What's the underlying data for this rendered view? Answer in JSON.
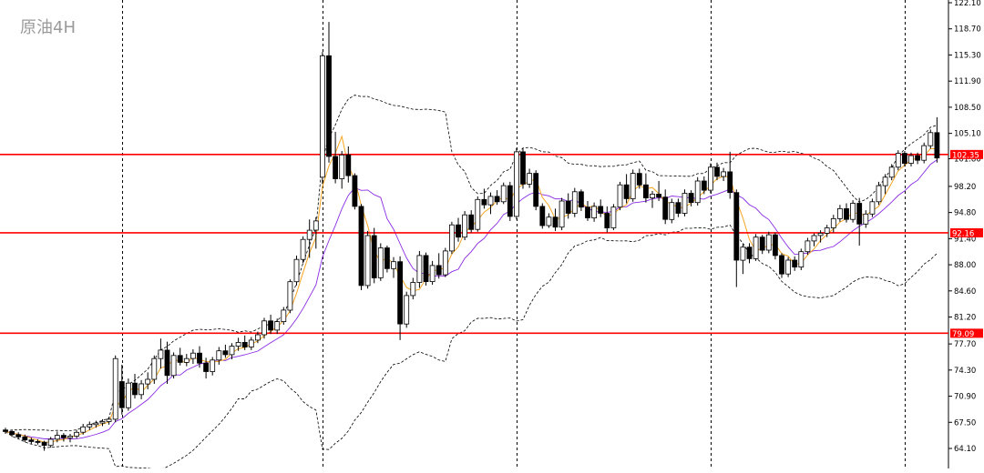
{
  "chart_data": {
    "type": "candlestick",
    "title": "原油4H",
    "ylim": [
      62.5,
      122.1
    ],
    "y_ticks": [
      "122.10",
      "118.70",
      "115.30",
      "111.90",
      "108.50",
      "105.10",
      "101.80",
      "98.20",
      "94.80",
      "91.40",
      "88.00",
      "84.60",
      "81.20",
      "77.70",
      "74.30",
      "70.90",
      "67.50",
      "64.10"
    ],
    "horizontal_lines": [
      {
        "value": 102.35,
        "label": "102.35",
        "color": "#ff0000"
      },
      {
        "value": 92.16,
        "label": "92.16",
        "color": "#ff0000"
      },
      {
        "value": 79.09,
        "label": "79.09",
        "color": "#ff0000"
      }
    ],
    "vertical_separators_x_index": [
      18,
      49,
      79,
      109,
      139
    ],
    "grid": false,
    "colors": {
      "up": "#ffffff",
      "down": "#000000",
      "wick": "#000000",
      "ma_fast": "#f5a623",
      "ma_slow": "#8a2be2",
      "band": "#000000"
    },
    "candles": [
      [
        66.5,
        66.8,
        66.0,
        66.3
      ],
      [
        66.3,
        66.5,
        65.6,
        65.9
      ],
      [
        65.9,
        66.2,
        65.3,
        65.6
      ],
      [
        65.6,
        65.9,
        64.9,
        65.2
      ],
      [
        65.2,
        65.5,
        64.7,
        65.0
      ],
      [
        65.0,
        65.3,
        64.6,
        64.9
      ],
      [
        64.9,
        65.1,
        63.8,
        64.5
      ],
      [
        64.5,
        65.6,
        64.2,
        65.3
      ],
      [
        65.3,
        66.3,
        64.9,
        65.8
      ],
      [
        65.8,
        66.1,
        65.0,
        65.5
      ],
      [
        65.5,
        66.0,
        64.9,
        65.7
      ],
      [
        65.7,
        66.5,
        65.4,
        66.2
      ],
      [
        66.2,
        67.3,
        65.9,
        66.9
      ],
      [
        66.9,
        67.6,
        66.5,
        67.2
      ],
      [
        67.2,
        67.7,
        66.8,
        67.4
      ],
      [
        67.4,
        67.9,
        67.0,
        67.6
      ],
      [
        67.6,
        68.2,
        67.2,
        67.9
      ],
      [
        67.9,
        76.2,
        67.5,
        75.8
      ],
      [
        72.8,
        75.0,
        68.5,
        69.4
      ],
      [
        69.4,
        73.2,
        69.0,
        72.6
      ],
      [
        72.6,
        73.8,
        70.6,
        71.1
      ],
      [
        71.1,
        73.0,
        70.5,
        72.5
      ],
      [
        72.5,
        74.0,
        71.8,
        73.1
      ],
      [
        73.1,
        76.2,
        72.5,
        75.8
      ],
      [
        75.8,
        78.4,
        74.5,
        76.9
      ],
      [
        76.9,
        78.0,
        72.5,
        73.6
      ],
      [
        73.6,
        76.6,
        73.2,
        76.2
      ],
      [
        76.2,
        77.2,
        74.9,
        75.3
      ],
      [
        75.3,
        76.4,
        74.8,
        75.8
      ],
      [
        75.8,
        77.0,
        75.1,
        76.5
      ],
      [
        76.5,
        77.4,
        74.6,
        75.2
      ],
      [
        75.2,
        75.9,
        73.2,
        74.1
      ],
      [
        74.1,
        76.0,
        73.6,
        75.6
      ],
      [
        75.6,
        77.3,
        75.0,
        76.8
      ],
      [
        76.8,
        77.6,
        75.9,
        76.3
      ],
      [
        76.3,
        77.8,
        75.7,
        77.4
      ],
      [
        77.4,
        78.5,
        76.8,
        77.9
      ],
      [
        77.9,
        78.8,
        76.9,
        77.3
      ],
      [
        77.3,
        78.6,
        76.9,
        78.2
      ],
      [
        78.2,
        79.3,
        77.8,
        78.9
      ],
      [
        78.9,
        81.1,
        78.4,
        80.7
      ],
      [
        80.7,
        81.5,
        79.0,
        79.5
      ],
      [
        79.5,
        81.0,
        79.0,
        80.6
      ],
      [
        80.6,
        82.5,
        80.2,
        82.1
      ],
      [
        82.1,
        86.1,
        81.7,
        85.8
      ],
      [
        85.8,
        89.2,
        85.3,
        88.7
      ],
      [
        88.7,
        91.7,
        88.2,
        91.3
      ],
      [
        91.3,
        93.9,
        88.9,
        92.5
      ],
      [
        92.5,
        94.2,
        90.1,
        93.7
      ],
      [
        99.4,
        115.7,
        98.5,
        115.2
      ],
      [
        115.2,
        119.6,
        101.3,
        102.1
      ],
      [
        102.1,
        105.3,
        98.6,
        99.2
      ],
      [
        99.2,
        102.8,
        97.9,
        102.3
      ],
      [
        102.3,
        103.4,
        98.7,
        99.6
      ],
      [
        99.6,
        99.9,
        95.2,
        95.6
      ],
      [
        95.6,
        95.9,
        84.7,
        85.3
      ],
      [
        85.3,
        92.4,
        84.9,
        91.8
      ],
      [
        91.8,
        92.8,
        85.6,
        86.3
      ],
      [
        86.3,
        90.8,
        85.9,
        90.2
      ],
      [
        90.2,
        90.5,
        87.0,
        87.5
      ],
      [
        87.5,
        89.0,
        86.3,
        88.4
      ],
      [
        88.4,
        89.1,
        78.2,
        80.3
      ],
      [
        80.3,
        84.5,
        79.8,
        84.0
      ],
      [
        84.0,
        86.3,
        83.5,
        85.7
      ],
      [
        85.7,
        89.8,
        85.0,
        89.2
      ],
      [
        89.2,
        89.6,
        85.3,
        85.8
      ],
      [
        85.8,
        88.5,
        85.4,
        87.9
      ],
      [
        87.9,
        89.5,
        86.2,
        86.7
      ],
      [
        86.7,
        90.2,
        86.4,
        89.8
      ],
      [
        89.8,
        93.6,
        89.4,
        93.2
      ],
      [
        93.2,
        94.1,
        91.0,
        91.6
      ],
      [
        91.6,
        95.0,
        91.2,
        94.5
      ],
      [
        94.5,
        95.1,
        92.2,
        92.6
      ],
      [
        92.6,
        96.9,
        92.3,
        96.5
      ],
      [
        96.5,
        97.9,
        95.3,
        95.8
      ],
      [
        95.8,
        97.4,
        94.6,
        96.9
      ],
      [
        96.9,
        97.7,
        95.8,
        96.2
      ],
      [
        96.2,
        98.7,
        95.9,
        98.3
      ],
      [
        98.3,
        98.8,
        93.7,
        94.3
      ],
      [
        94.3,
        103.2,
        93.9,
        102.7
      ],
      [
        102.7,
        103.1,
        97.9,
        98.5
      ],
      [
        98.5,
        100.5,
        98.0,
        99.9
      ],
      [
        99.9,
        100.3,
        95.1,
        95.6
      ],
      [
        95.6,
        96.0,
        92.7,
        93.1
      ],
      [
        93.1,
        94.7,
        92.8,
        94.2
      ],
      [
        94.2,
        95.3,
        92.4,
        92.9
      ],
      [
        92.9,
        96.7,
        92.5,
        96.3
      ],
      [
        96.3,
        97.3,
        94.0,
        94.7
      ],
      [
        94.7,
        98.0,
        94.2,
        97.5
      ],
      [
        97.5,
        97.8,
        95.0,
        95.5
      ],
      [
        95.5,
        96.3,
        93.7,
        94.1
      ],
      [
        94.1,
        96.1,
        93.6,
        95.6
      ],
      [
        95.6,
        96.5,
        94.2,
        94.7
      ],
      [
        94.7,
        95.6,
        92.2,
        92.8
      ],
      [
        92.8,
        95.9,
        92.5,
        95.5
      ],
      [
        95.5,
        98.8,
        95.1,
        98.4
      ],
      [
        98.4,
        99.8,
        96.0,
        96.6
      ],
      [
        96.6,
        100.4,
        96.2,
        99.9
      ],
      [
        99.9,
        100.5,
        97.9,
        98.4
      ],
      [
        98.4,
        99.9,
        96.1,
        96.7
      ],
      [
        96.7,
        97.6,
        95.4,
        97.2
      ],
      [
        97.2,
        98.9,
        96.3,
        96.8
      ],
      [
        96.8,
        97.8,
        93.3,
        93.9
      ],
      [
        93.9,
        96.6,
        93.4,
        96.1
      ],
      [
        96.1,
        96.6,
        94.2,
        94.7
      ],
      [
        94.7,
        97.8,
        94.3,
        97.3
      ],
      [
        97.3,
        97.7,
        95.6,
        96.1
      ],
      [
        96.1,
        99.4,
        95.7,
        98.9
      ],
      [
        98.9,
        99.5,
        97.2,
        97.7
      ],
      [
        97.7,
        101.2,
        97.3,
        100.7
      ],
      [
        100.7,
        101.3,
        99.0,
        99.5
      ],
      [
        99.5,
        100.6,
        98.9,
        100.1
      ],
      [
        100.1,
        102.7,
        96.6,
        97.4
      ],
      [
        97.4,
        97.8,
        85.1,
        88.6
      ],
      [
        88.6,
        90.7,
        86.8,
        90.3
      ],
      [
        90.3,
        90.8,
        88.2,
        88.8
      ],
      [
        88.8,
        92.0,
        88.5,
        91.6
      ],
      [
        91.6,
        91.9,
        89.4,
        89.9
      ],
      [
        89.9,
        92.3,
        89.5,
        91.9
      ],
      [
        91.9,
        92.2,
        88.7,
        89.2
      ],
      [
        89.2,
        89.5,
        86.3,
        86.8
      ],
      [
        86.8,
        89.0,
        86.4,
        88.6
      ],
      [
        88.6,
        89.1,
        87.2,
        87.7
      ],
      [
        87.7,
        90.1,
        87.3,
        89.7
      ],
      [
        89.7,
        91.5,
        89.3,
        91.1
      ],
      [
        91.1,
        92.1,
        90.4,
        91.8
      ],
      [
        91.8,
        92.5,
        90.9,
        92.1
      ],
      [
        92.1,
        93.2,
        91.6,
        92.8
      ],
      [
        92.8,
        94.5,
        92.2,
        94.0
      ],
      [
        94.0,
        95.8,
        93.6,
        95.3
      ],
      [
        95.3,
        96.0,
        93.5,
        93.9
      ],
      [
        93.9,
        96.4,
        93.5,
        96.0
      ],
      [
        96.0,
        96.7,
        90.5,
        93.3
      ],
      [
        93.3,
        95.1,
        92.8,
        94.6
      ],
      [
        94.6,
        96.6,
        94.2,
        96.2
      ],
      [
        96.2,
        98.8,
        95.8,
        98.3
      ],
      [
        98.3,
        99.8,
        97.2,
        99.4
      ],
      [
        99.4,
        101.1,
        99.0,
        100.7
      ],
      [
        100.7,
        102.9,
        100.3,
        102.5
      ],
      [
        102.5,
        102.8,
        100.8,
        101.2
      ],
      [
        101.2,
        102.6,
        100.8,
        102.2
      ],
      [
        102.2,
        102.6,
        101.1,
        101.6
      ],
      [
        101.6,
        103.9,
        101.2,
        103.5
      ],
      [
        103.5,
        105.6,
        103.1,
        105.2
      ],
      [
        105.2,
        107.2,
        101.3,
        101.9
      ]
    ]
  }
}
